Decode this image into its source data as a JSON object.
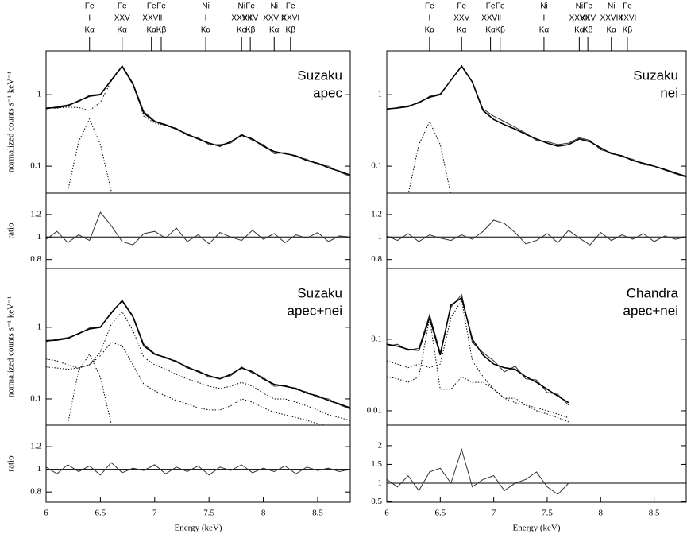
{
  "chart_data": [
    {
      "type": "line",
      "label": [
        "Suzaku",
        "apec"
      ],
      "ylabel": "normalized counts s⁻¹ keV⁻¹",
      "log_y": true,
      "xlim": [
        6,
        8.8
      ],
      "ylim": [
        0.042,
        4.1
      ],
      "yticks": [
        0.1,
        1
      ],
      "annotations": [
        {
          "x": 6.4,
          "text": [
            "Fe",
            "I",
            "Kα"
          ]
        },
        {
          "x": 6.7,
          "text": [
            "Fe",
            "XXV",
            "Kα"
          ]
        },
        {
          "x": 6.97,
          "text": [
            "Fe",
            "XXVI",
            "Kα"
          ]
        },
        {
          "x": 7.06,
          "text": [
            "Fe",
            "I",
            "Kβ"
          ]
        },
        {
          "x": 7.47,
          "text": [
            "Ni",
            "I",
            "Kα"
          ]
        },
        {
          "x": 7.8,
          "text": [
            "Ni",
            "XXVII",
            "Kα"
          ]
        },
        {
          "x": 7.88,
          "text": [
            "Fe",
            "XXV",
            "Kβ"
          ]
        },
        {
          "x": 8.1,
          "text": [
            "Ni",
            "XXVIII",
            "Kα"
          ]
        },
        {
          "x": 8.25,
          "text": [
            "Fe",
            "XXVI",
            "Kβ"
          ]
        }
      ],
      "x": [
        6.0,
        6.1,
        6.2,
        6.3,
        6.4,
        6.5,
        6.6,
        6.7,
        6.8,
        6.9,
        7.0,
        7.1,
        7.2,
        7.3,
        7.4,
        7.5,
        7.6,
        7.7,
        7.8,
        7.9,
        8.0,
        8.1,
        8.2,
        8.3,
        8.4,
        8.5,
        8.6,
        8.7,
        8.8
      ],
      "series": [
        {
          "style": "data",
          "color": "#333333",
          "values": [
            0.63,
            0.68,
            0.72,
            0.8,
            0.98,
            1.02,
            1.55,
            2.55,
            1.45,
            0.58,
            0.43,
            0.37,
            0.34,
            0.27,
            0.25,
            0.2,
            0.2,
            0.21,
            0.28,
            0.23,
            0.2,
            0.15,
            0.155,
            0.135,
            0.125,
            0.105,
            0.1,
            0.083,
            0.072
          ]
        },
        {
          "style": "model",
          "color": "#000000",
          "values": [
            0.65,
            0.66,
            0.7,
            0.82,
            0.95,
            1.0,
            1.6,
            2.5,
            1.4,
            0.55,
            0.42,
            0.38,
            0.33,
            0.28,
            0.24,
            0.21,
            0.19,
            0.22,
            0.27,
            0.24,
            0.19,
            0.16,
            0.15,
            0.14,
            0.12,
            0.11,
            0.095,
            0.085,
            0.075
          ]
        },
        {
          "style": "component",
          "color": "#000000",
          "values": [
            0.64,
            0.65,
            0.67,
            0.66,
            0.6,
            0.78,
            1.55,
            2.45,
            1.38,
            0.5,
            0.4,
            0.37,
            0.33,
            0.28,
            0.24,
            0.21,
            0.19,
            0.22,
            0.27,
            0.24,
            0.19,
            0.16,
            0.15,
            0.14,
            0.12,
            0.11,
            0.095,
            0.085,
            0.075
          ]
        },
        {
          "style": "component",
          "color": "#000000",
          "values": [
            null,
            null,
            0.045,
            0.22,
            0.46,
            0.2,
            0.045,
            null,
            null,
            null,
            null,
            null,
            null,
            null,
            null,
            null,
            null,
            null,
            null,
            null,
            null,
            null,
            null,
            null,
            null,
            null,
            null,
            null,
            null
          ]
        }
      ],
      "ratio": {
        "ylabel": "ratio",
        "ylim": [
          0.72,
          1.39
        ],
        "yticks": [
          0.8,
          1,
          1.2
        ],
        "reference": 1,
        "values": [
          0.98,
          1.05,
          0.95,
          1.02,
          0.97,
          1.22,
          1.1,
          0.96,
          0.93,
          1.03,
          1.05,
          0.99,
          1.08,
          0.96,
          1.02,
          0.94,
          1.04,
          1.0,
          0.97,
          1.06,
          0.98,
          1.03,
          0.95,
          1.02,
          0.99,
          1.04,
          0.96,
          1.01,
          1.0
        ]
      }
    },
    {
      "type": "line",
      "label": [
        "Suzaku",
        "nei"
      ],
      "log_y": true,
      "xlim": [
        6,
        8.8
      ],
      "ylim": [
        0.042,
        4.1
      ],
      "yticks": [
        0.1,
        1
      ],
      "annotations": [
        {
          "x": 6.4,
          "text": [
            "Fe",
            "I",
            "Kα"
          ]
        },
        {
          "x": 6.7,
          "text": [
            "Fe",
            "XXV",
            "Kα"
          ]
        },
        {
          "x": 6.97,
          "text": [
            "Fe",
            "XXVI",
            "Kα"
          ]
        },
        {
          "x": 7.06,
          "text": [
            "Fe",
            "I",
            "Kβ"
          ]
        },
        {
          "x": 7.47,
          "text": [
            "Ni",
            "I",
            "Kα"
          ]
        },
        {
          "x": 7.8,
          "text": [
            "Ni",
            "XXVII",
            "Kα"
          ]
        },
        {
          "x": 7.88,
          "text": [
            "Fe",
            "XXV",
            "Kβ"
          ]
        },
        {
          "x": 8.1,
          "text": [
            "Ni",
            "XXVIII",
            "Kα"
          ]
        },
        {
          "x": 8.25,
          "text": [
            "Fe",
            "XXVI",
            "Kβ"
          ]
        }
      ],
      "x": [
        6.0,
        6.1,
        6.2,
        6.3,
        6.4,
        6.5,
        6.6,
        6.7,
        6.8,
        6.9,
        7.0,
        7.1,
        7.2,
        7.3,
        7.4,
        7.5,
        7.6,
        7.7,
        7.8,
        7.9,
        8.0,
        8.1,
        8.2,
        8.3,
        8.4,
        8.5,
        8.6,
        8.7,
        8.8
      ],
      "series": [
        {
          "style": "data",
          "color": "#333333",
          "values": [
            0.62,
            0.66,
            0.7,
            0.76,
            0.95,
            1.03,
            1.58,
            2.55,
            1.52,
            0.63,
            0.5,
            0.42,
            0.35,
            0.29,
            0.23,
            0.22,
            0.2,
            0.21,
            0.25,
            0.23,
            0.17,
            0.155,
            0.135,
            0.125,
            0.105,
            0.1,
            0.088,
            0.078,
            0.07
          ]
        },
        {
          "style": "model",
          "color": "#000000",
          "values": [
            0.63,
            0.65,
            0.68,
            0.78,
            0.92,
            1.0,
            1.6,
            2.5,
            1.5,
            0.6,
            0.45,
            0.38,
            0.33,
            0.28,
            0.24,
            0.21,
            0.19,
            0.2,
            0.24,
            0.22,
            0.18,
            0.15,
            0.14,
            0.12,
            0.11,
            0.1,
            0.09,
            0.08,
            0.072
          ]
        },
        {
          "style": "component",
          "color": "#000000",
          "values": [
            null,
            null,
            0.04,
            0.2,
            0.42,
            0.2,
            0.04,
            null,
            null,
            null,
            null,
            null,
            null,
            null,
            null,
            null,
            null,
            null,
            null,
            null,
            null,
            null,
            null,
            null,
            null,
            null,
            null,
            null,
            null
          ]
        }
      ],
      "ratio": {
        "ylim": [
          0.72,
          1.39
        ],
        "yticks": [
          0.8,
          1,
          1.2
        ],
        "reference": 1,
        "values": [
          1.01,
          0.97,
          1.03,
          0.96,
          1.02,
          0.99,
          0.97,
          1.02,
          0.98,
          1.05,
          1.15,
          1.12,
          1.04,
          0.94,
          0.97,
          1.03,
          0.95,
          1.06,
          0.99,
          0.93,
          1.04,
          0.97,
          1.02,
          0.98,
          1.03,
          0.96,
          1.01,
          0.98,
          1.0
        ]
      }
    },
    {
      "type": "line",
      "label": [
        "Suzaku",
        "apec+nei"
      ],
      "ylabel": "normalized counts s⁻¹ keV⁻¹",
      "log_y": true,
      "xlim": [
        6,
        8.8
      ],
      "ylim": [
        0.043,
        6.6
      ],
      "yticks": [
        0.1,
        1
      ],
      "xticks": [
        6,
        6.5,
        7,
        7.5,
        8,
        8.5
      ],
      "xlabel": "Energy (keV)",
      "x": [
        6.0,
        6.1,
        6.2,
        6.3,
        6.4,
        6.5,
        6.6,
        6.7,
        6.8,
        6.9,
        7.0,
        7.1,
        7.2,
        7.3,
        7.4,
        7.5,
        7.6,
        7.7,
        7.8,
        7.9,
        8.0,
        8.1,
        8.2,
        8.3,
        8.4,
        8.5,
        8.6,
        8.7,
        8.8
      ],
      "series": [
        {
          "style": "data",
          "color": "#333333",
          "values": [
            0.63,
            0.68,
            0.72,
            0.8,
            0.98,
            1.02,
            1.55,
            2.4,
            1.45,
            0.58,
            0.43,
            0.37,
            0.34,
            0.27,
            0.25,
            0.2,
            0.2,
            0.21,
            0.28,
            0.23,
            0.2,
            0.15,
            0.155,
            0.135,
            0.125,
            0.105,
            0.1,
            0.083,
            0.072
          ]
        },
        {
          "style": "model",
          "color": "#000000",
          "values": [
            0.65,
            0.66,
            0.7,
            0.82,
            0.95,
            1.0,
            1.6,
            2.35,
            1.4,
            0.55,
            0.42,
            0.38,
            0.33,
            0.28,
            0.24,
            0.21,
            0.19,
            0.22,
            0.27,
            0.24,
            0.19,
            0.16,
            0.15,
            0.14,
            0.12,
            0.11,
            0.095,
            0.085,
            0.075
          ]
        },
        {
          "style": "component",
          "color": "#000000",
          "values": [
            0.28,
            0.27,
            0.26,
            0.27,
            0.3,
            0.45,
            1.1,
            1.65,
            0.9,
            0.38,
            0.3,
            0.26,
            0.22,
            0.19,
            0.17,
            0.15,
            0.14,
            0.15,
            0.17,
            0.15,
            0.12,
            0.1,
            0.1,
            0.09,
            0.08,
            0.07,
            0.06,
            0.055,
            0.05
          ]
        },
        {
          "style": "component",
          "color": "#000000",
          "values": [
            0.36,
            0.34,
            0.3,
            0.27,
            0.3,
            0.4,
            0.62,
            0.55,
            0.3,
            0.16,
            0.13,
            0.11,
            0.095,
            0.085,
            0.075,
            0.07,
            0.07,
            0.08,
            0.1,
            0.09,
            0.075,
            0.065,
            0.06,
            0.055,
            0.05,
            0.045,
            0.042,
            0.04,
            0.038
          ]
        },
        {
          "style": "component",
          "color": "#000000",
          "values": [
            null,
            null,
            0.045,
            0.25,
            0.42,
            0.2,
            0.045,
            null,
            null,
            null,
            null,
            null,
            null,
            null,
            null,
            null,
            null,
            null,
            null,
            null,
            null,
            null,
            null,
            null,
            null,
            null,
            null,
            null,
            null
          ]
        }
      ],
      "ratio": {
        "ylabel": "ratio",
        "ylim": [
          0.71,
          1.39
        ],
        "yticks": [
          0.8,
          1,
          1.2
        ],
        "reference": 1,
        "values": [
          1.02,
          0.96,
          1.04,
          0.98,
          1.03,
          0.95,
          1.06,
          0.97,
          1.01,
          0.99,
          1.04,
          0.96,
          1.02,
          0.98,
          1.03,
          0.95,
          1.02,
          0.99,
          1.04,
          0.97,
          1.01,
          0.98,
          1.03,
          0.96,
          1.02,
          0.99,
          1.01,
          0.98,
          1.0
        ]
      }
    },
    {
      "type": "line",
      "label": [
        "Chandra",
        "apec+nei"
      ],
      "log_y": true,
      "xlim": [
        6,
        8.8
      ],
      "ylim": [
        0.0063,
        0.97
      ],
      "yticks": [
        0.01,
        0.1
      ],
      "xticks": [
        6,
        6.5,
        7,
        7.5,
        8,
        8.5
      ],
      "xlabel": "Energy (keV)",
      "x": [
        6.0,
        6.1,
        6.2,
        6.3,
        6.4,
        6.5,
        6.6,
        6.7,
        6.8,
        6.9,
        7.0,
        7.1,
        7.2,
        7.3,
        7.4,
        7.5,
        7.6,
        7.7
      ],
      "series": [
        {
          "style": "data",
          "color": "#333333",
          "values": [
            0.08,
            0.085,
            0.07,
            0.075,
            0.22,
            0.065,
            0.28,
            0.42,
            0.09,
            0.065,
            0.05,
            0.035,
            0.042,
            0.028,
            0.027,
            0.018,
            0.017,
            0.012
          ]
        },
        {
          "style": "model",
          "color": "#000000",
          "values": [
            0.085,
            0.08,
            0.072,
            0.07,
            0.2,
            0.06,
            0.3,
            0.38,
            0.1,
            0.06,
            0.045,
            0.04,
            0.038,
            0.03,
            0.025,
            0.02,
            0.016,
            0.013
          ]
        },
        {
          "style": "component",
          "color": "#000000",
          "values": [
            0.05,
            0.045,
            0.04,
            0.045,
            0.04,
            0.045,
            0.2,
            0.35,
            0.05,
            0.03,
            0.02,
            0.015,
            0.013,
            0.012,
            0.01,
            0.009,
            0.008,
            0.007
          ]
        },
        {
          "style": "component",
          "color": "#000000",
          "values": [
            0.03,
            0.028,
            0.025,
            0.03,
            0.2,
            0.02,
            0.02,
            0.03,
            0.025,
            0.025,
            0.02,
            0.015,
            0.015,
            0.012,
            0.011,
            0.01,
            0.009,
            0.008
          ]
        }
      ],
      "ratio": {
        "ylim": [
          0.49,
          2.55
        ],
        "yticks": [
          0.5,
          1,
          1.5,
          2
        ],
        "reference": 1,
        "values": [
          1.1,
          0.9,
          1.2,
          0.8,
          1.3,
          1.4,
          1.0,
          1.9,
          0.9,
          1.1,
          1.2,
          0.8,
          1.0,
          1.1,
          1.3,
          0.9,
          0.7,
          1.0
        ]
      }
    }
  ]
}
